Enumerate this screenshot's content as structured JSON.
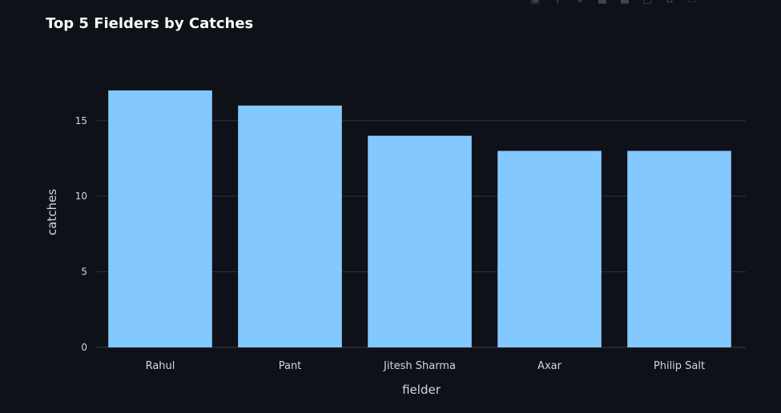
{
  "modebar": {
    "icons": [
      "camera-icon",
      "zoom-icon",
      "pan-icon",
      "zoom-in-icon",
      "zoom-out-icon",
      "autoscale-icon",
      "reset-axes-icon",
      "fullscreen-icon"
    ]
  },
  "colors": {
    "background": "#0e1117",
    "bar": "#83c9ff",
    "grid": "#31333f",
    "text": "#fafafa",
    "tick_text": "#d5d6d9"
  },
  "chart_data": {
    "type": "bar",
    "title": "Top 5 Fielders by Catches",
    "xlabel": "fielder",
    "ylabel": "catches",
    "categories": [
      "Rahul",
      "Pant",
      "Jitesh Sharma",
      "Axar",
      "Philip Salt"
    ],
    "values": [
      17,
      16,
      14,
      13,
      13
    ],
    "ylim": [
      0,
      17.9
    ],
    "yticks": [
      "0",
      "5",
      "10",
      "15"
    ],
    "grid": true
  }
}
